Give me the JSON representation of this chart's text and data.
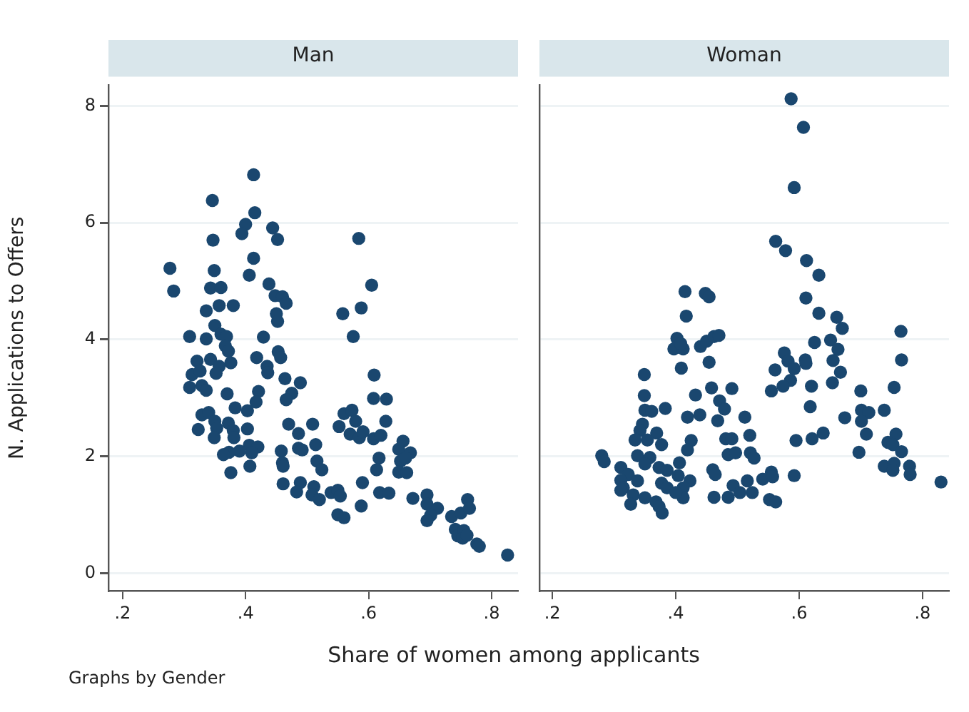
{
  "chart_data": [
    {
      "type": "scatter",
      "title": "Man",
      "xlabel": "Share of women among applicants",
      "ylabel": "N. Applications to Offers",
      "annotations": [
        "Graphs by Gender"
      ],
      "color": "#1a476f",
      "marker": "circle",
      "grid": "y",
      "legend": false,
      "xlim": [
        0.177,
        0.843
      ],
      "ylim": [
        -0.3,
        8.35
      ],
      "xticks": [
        {
          "value": 0.2,
          "label": ".2"
        },
        {
          "value": 0.4,
          "label": ".4"
        },
        {
          "value": 0.6,
          "label": ".6"
        },
        {
          "value": 0.8,
          "label": ".8"
        }
      ],
      "yticks": [
        0,
        2,
        4,
        6,
        8
      ],
      "x": [
        0.413,
        0.346,
        0.415,
        0.4,
        0.394,
        0.444,
        0.452,
        0.347,
        0.413,
        0.406,
        0.349,
        0.277,
        0.283,
        0.343,
        0.36,
        0.438,
        0.448,
        0.46,
        0.466,
        0.38,
        0.357,
        0.336,
        0.45,
        0.452,
        0.35,
        0.36,
        0.369,
        0.367,
        0.372,
        0.336,
        0.309,
        0.429,
        0.453,
        0.457,
        0.418,
        0.343,
        0.376,
        0.321,
        0.357,
        0.435,
        0.436,
        0.352,
        0.313,
        0.326,
        0.464,
        0.489,
        0.309,
        0.329,
        0.336,
        0.421,
        0.475,
        0.37,
        0.466,
        0.417,
        0.383,
        0.403,
        0.329,
        0.34,
        0.47,
        0.509,
        0.35,
        0.372,
        0.323,
        0.353,
        0.403,
        0.38,
        0.486,
        0.349,
        0.381,
        0.514,
        0.406,
        0.42,
        0.486,
        0.492,
        0.458,
        0.39,
        0.373,
        0.364,
        0.41,
        0.516,
        0.46,
        0.407,
        0.461,
        0.376,
        0.461,
        0.489,
        0.483,
        0.511,
        0.508,
        0.584,
        0.605,
        0.558,
        0.588,
        0.575,
        0.609,
        0.608,
        0.629,
        0.56,
        0.573,
        0.552,
        0.579,
        0.57,
        0.585,
        0.591,
        0.608,
        0.62,
        0.628,
        0.524,
        0.52,
        0.539,
        0.55,
        0.554,
        0.55,
        0.56,
        0.617,
        0.613,
        0.59,
        0.588,
        0.618,
        0.633,
        0.656,
        0.649,
        0.668,
        0.652,
        0.66,
        0.649,
        0.662,
        0.672,
        0.695,
        0.695,
        0.712,
        0.701,
        0.695,
        0.735,
        0.75,
        0.761,
        0.764,
        0.741,
        0.745,
        0.755,
        0.753,
        0.76,
        0.776,
        0.78,
        0.826
      ],
      "values": [
        6.82,
        6.38,
        6.17,
        5.97,
        5.81,
        5.91,
        5.71,
        5.7,
        5.39,
        5.1,
        5.18,
        5.22,
        4.83,
        4.88,
        4.89,
        4.95,
        4.75,
        4.73,
        4.62,
        4.58,
        4.58,
        4.49,
        4.44,
        4.31,
        4.24,
        4.09,
        4.05,
        3.89,
        3.8,
        4.01,
        4.05,
        4.04,
        3.79,
        3.69,
        3.69,
        3.66,
        3.6,
        3.63,
        3.54,
        3.54,
        3.43,
        3.42,
        3.4,
        3.46,
        3.33,
        3.26,
        3.18,
        3.21,
        3.13,
        3.11,
        3.08,
        3.07,
        2.97,
        2.93,
        2.83,
        2.78,
        2.71,
        2.75,
        2.55,
        2.55,
        2.6,
        2.57,
        2.46,
        2.48,
        2.47,
        2.44,
        2.39,
        2.32,
        2.32,
        2.2,
        2.19,
        2.16,
        2.14,
        2.11,
        2.09,
        2.09,
        2.07,
        2.03,
        2.06,
        1.92,
        1.89,
        1.83,
        1.83,
        1.72,
        1.53,
        1.55,
        1.39,
        1.48,
        1.34,
        5.73,
        4.93,
        4.44,
        4.54,
        4.05,
        3.39,
        2.99,
        2.98,
        2.73,
        2.79,
        2.51,
        2.6,
        2.38,
        2.32,
        2.42,
        2.3,
        2.36,
        2.6,
        1.77,
        1.26,
        1.38,
        1.42,
        1.32,
        1.0,
        0.95,
        1.97,
        1.77,
        1.55,
        1.15,
        1.38,
        1.37,
        2.26,
        2.12,
        2.06,
        1.92,
        1.97,
        1.73,
        1.72,
        1.28,
        1.34,
        1.18,
        1.11,
        0.99,
        0.9,
        0.97,
        1.03,
        1.26,
        1.11,
        0.75,
        0.64,
        0.73,
        0.6,
        0.65,
        0.5,
        0.46,
        0.31
      ]
    },
    {
      "type": "scatter",
      "title": "Woman",
      "color": "#1a476f",
      "marker": "circle",
      "grid": "y",
      "legend": false,
      "tick_labels": "x",
      "xlim": [
        0.179,
        0.843
      ],
      "ylim": [
        -0.3,
        8.35
      ],
      "xticks": [
        {
          "value": 0.2,
          "label": ".2"
        },
        {
          "value": 0.4,
          "label": ".4"
        },
        {
          "value": 0.6,
          "label": ".6"
        },
        {
          "value": 0.8,
          "label": ".8"
        }
      ],
      "yticks": [
        0,
        2,
        4,
        6,
        8
      ],
      "x": [
        0.415,
        0.448,
        0.454,
        0.417,
        0.402,
        0.397,
        0.412,
        0.408,
        0.44,
        0.45,
        0.462,
        0.47,
        0.454,
        0.409,
        0.349,
        0.349,
        0.432,
        0.458,
        0.491,
        0.471,
        0.479,
        0.383,
        0.35,
        0.361,
        0.419,
        0.439,
        0.468,
        0.512,
        0.346,
        0.342,
        0.369,
        0.354,
        0.377,
        0.334,
        0.425,
        0.481,
        0.491,
        0.52,
        0.419,
        0.485,
        0.497,
        0.521,
        0.338,
        0.358,
        0.28,
        0.284,
        0.406,
        0.311,
        0.35,
        0.373,
        0.386,
        0.46,
        0.464,
        0.323,
        0.311,
        0.404,
        0.423,
        0.315,
        0.338,
        0.377,
        0.386,
        0.412,
        0.493,
        0.516,
        0.504,
        0.524,
        0.462,
        0.485,
        0.311,
        0.331,
        0.35,
        0.368,
        0.412,
        0.327,
        0.373,
        0.378,
        0.4,
        0.587,
        0.607,
        0.592,
        0.562,
        0.578,
        0.612,
        0.632,
        0.611,
        0.632,
        0.661,
        0.67,
        0.625,
        0.651,
        0.663,
        0.576,
        0.582,
        0.61,
        0.611,
        0.655,
        0.561,
        0.592,
        0.586,
        0.574,
        0.555,
        0.667,
        0.654,
        0.62,
        0.618,
        0.7,
        0.754,
        0.765,
        0.766,
        0.674,
        0.701,
        0.713,
        0.701,
        0.738,
        0.709,
        0.639,
        0.621,
        0.595,
        0.697,
        0.757,
        0.744,
        0.752,
        0.766,
        0.738,
        0.754,
        0.752,
        0.779,
        0.78,
        0.83,
        0.592,
        0.555,
        0.541,
        0.557,
        0.552,
        0.562,
        0.527
      ],
      "values": [
        4.82,
        4.79,
        4.73,
        4.4,
        4.02,
        3.84,
        3.84,
        3.93,
        3.88,
        3.97,
        4.05,
        4.07,
        3.61,
        3.51,
        3.4,
        3.04,
        3.05,
        3.17,
        3.16,
        2.95,
        2.81,
        2.82,
        2.79,
        2.77,
        2.67,
        2.71,
        2.61,
        2.67,
        2.55,
        2.44,
        2.4,
        2.28,
        2.2,
        2.28,
        2.27,
        2.3,
        2.3,
        2.36,
        2.11,
        2.03,
        2.06,
        2.06,
        2.01,
        1.98,
        2.01,
        1.91,
        1.89,
        1.81,
        1.87,
        1.81,
        1.76,
        1.77,
        1.69,
        1.69,
        1.59,
        1.67,
        1.58,
        1.46,
        1.58,
        1.54,
        1.46,
        1.46,
        1.5,
        1.58,
        1.38,
        1.38,
        1.3,
        1.3,
        1.42,
        1.34,
        1.29,
        1.22,
        1.29,
        1.18,
        1.14,
        1.03,
        1.38,
        8.12,
        7.63,
        6.6,
        5.68,
        5.52,
        5.35,
        5.1,
        4.71,
        4.45,
        4.38,
        4.19,
        3.95,
        3.99,
        3.83,
        3.77,
        3.63,
        3.65,
        3.59,
        3.64,
        3.48,
        3.5,
        3.3,
        3.2,
        3.12,
        3.44,
        3.26,
        3.2,
        2.85,
        3.12,
        3.18,
        4.14,
        3.65,
        2.66,
        2.79,
        2.75,
        2.6,
        2.79,
        2.38,
        2.4,
        2.3,
        2.27,
        2.07,
        2.38,
        2.24,
        2.2,
        2.08,
        1.83,
        1.88,
        1.76,
        1.83,
        1.69,
        1.56,
        1.67,
        1.73,
        1.61,
        1.65,
        1.26,
        1.22,
        1.97
      ]
    }
  ]
}
